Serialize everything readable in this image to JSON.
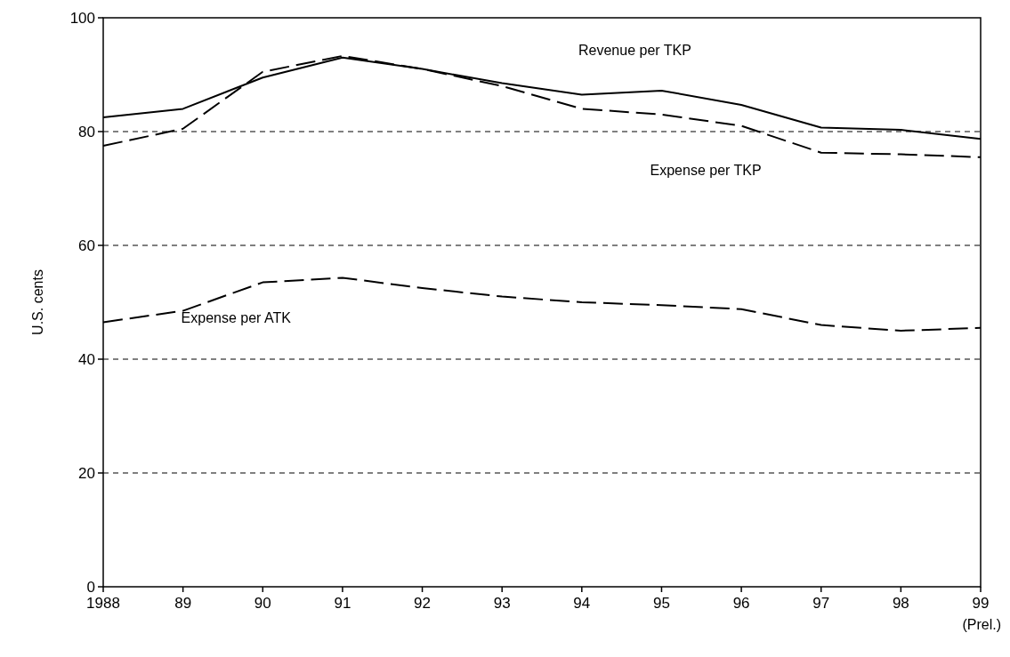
{
  "chart_data": {
    "type": "line",
    "ylabel": "U.S. cents",
    "x": [
      1988,
      1989,
      1990,
      1991,
      1992,
      1993,
      1994,
      1995,
      1996,
      1997,
      1998,
      1999
    ],
    "xlim": [
      1988,
      1999
    ],
    "xticks": [
      {
        "value": 1988,
        "label": "1988"
      },
      {
        "value": 1989,
        "label": "89"
      },
      {
        "value": 1990,
        "label": "90"
      },
      {
        "value": 1991,
        "label": "91"
      },
      {
        "value": 1992,
        "label": "92"
      },
      {
        "value": 1993,
        "label": "93"
      },
      {
        "value": 1994,
        "label": "94"
      },
      {
        "value": 1995,
        "label": "95"
      },
      {
        "value": 1996,
        "label": "96"
      },
      {
        "value": 1997,
        "label": "97"
      },
      {
        "value": 1998,
        "label": "98"
      },
      {
        "value": 1999,
        "label": "99"
      }
    ],
    "ylim": [
      0,
      100
    ],
    "yticks": [
      0,
      20,
      40,
      60,
      80,
      100
    ],
    "grid": "y",
    "annotations": [
      "(Prel.)"
    ],
    "series": [
      {
        "name": "Revenue per TKP",
        "color": "#000000",
        "line_style": "solid",
        "values": [
          82.5,
          84,
          89.5,
          93,
          91,
          88.5,
          86.5,
          87.2,
          84.7,
          80.7,
          80.3,
          78.7
        ]
      },
      {
        "name": "Expense per TKP",
        "color": "#000000",
        "line_style": "dashed",
        "values": [
          77.5,
          80.5,
          90.5,
          93.3,
          91,
          88,
          84,
          83,
          81,
          76.3,
          76,
          75.5
        ]
      },
      {
        "name": "Expense per ATK",
        "color": "#000000",
        "line_style": "dashed",
        "values": [
          46.5,
          48.5,
          53.5,
          54.3,
          52.5,
          51,
          50,
          49.5,
          48.8,
          46,
          45,
          45.5
        ]
      }
    ]
  }
}
